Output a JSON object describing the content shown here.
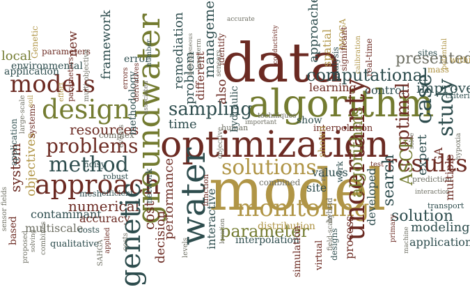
{
  "colors": {
    "brown": "#6b2a22",
    "olive": "#737b30",
    "teal": "#2d4c4d",
    "tan": "#b09546",
    "gray": "#6d6e62"
  },
  "words": [
    "data",
    "model",
    "optimization",
    "algorithm",
    "groundwater",
    "water",
    "genetic",
    "approach",
    "method",
    "design",
    "models",
    "uncertainty",
    "monitoring",
    "solutions",
    "computational",
    "sampling",
    "problems",
    "resources",
    "optimal",
    "results",
    "study",
    "algorithms",
    "case",
    "ASCE",
    "expert",
    "search",
    "solution",
    "parameter",
    "performance",
    "remediation",
    "management",
    "approaches",
    "spatial",
    "cost",
    "framework",
    "objectives",
    "system",
    "new",
    "environmental",
    "local",
    "presented",
    "improve",
    "decision",
    "interactive",
    "distribution",
    "modeling",
    "applications",
    "contaminant",
    "numerical",
    "accuracy",
    "multiscale",
    "based",
    "developed",
    "simulation",
    "process",
    "designs",
    "virtual",
    "combined",
    "site",
    "values",
    "shown",
    "show",
    "hydraulic",
    "also",
    "problem",
    "different",
    "time",
    "methodology",
    "IMOGA",
    "significant",
    "analysis",
    "real-time",
    "calibration",
    "learning",
    "control",
    "GA",
    "prediction",
    "multiple",
    "transport",
    "presents",
    "parameters",
    "sensor",
    "application",
    "systems",
    "large-scale",
    "network",
    "function",
    "identify",
    "sensors",
    "sensor fields",
    "interpolation",
    "qualitative",
    "information",
    "proposed",
    "solving",
    "SAHGA",
    "applied",
    "costs",
    "quantitative",
    "hybrid",
    "work",
    "field-scale",
    "machine",
    "primary",
    "interaction",
    "hypoxia",
    "criteria",
    "mass",
    "within",
    "potential",
    "sites",
    "test",
    "solve",
    "risk",
    "techniques",
    "important",
    "human",
    "efficient",
    "mesh",
    "robust",
    "noisy",
    "complex",
    "events",
    "error",
    "errors",
    "derivatives",
    "multi-objective",
    "effort",
    "soil",
    "Genetic",
    "combines",
    "levels",
    "location",
    "accurate",
    "conductivity",
    "long-term",
    "heterogeneous",
    "objective",
    "number",
    "associated"
  ]
}
